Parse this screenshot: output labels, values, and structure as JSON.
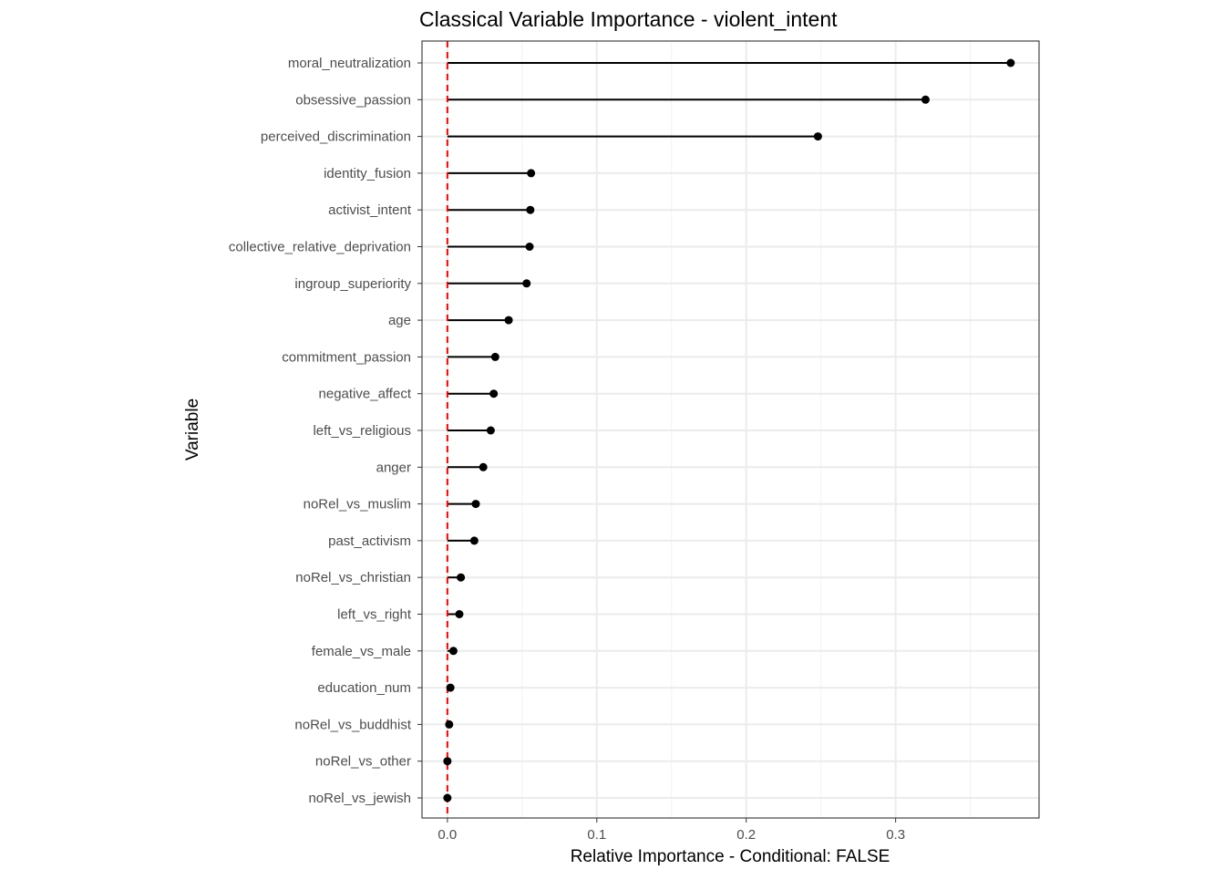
{
  "chart_data": {
    "type": "lollipop",
    "title": "Classical Variable Importance - violent_intent",
    "xlabel": "Relative Importance - Conditional: FALSE",
    "ylabel": "Variable",
    "xlim": [
      -0.017,
      0.396
    ],
    "xticks": [
      0.0,
      0.1,
      0.2,
      0.3
    ],
    "xtick_labels": [
      "0.0",
      "0.1",
      "0.2",
      "0.3"
    ],
    "reference_line": {
      "x": 0,
      "color": "#ff0000",
      "style": "dashed"
    },
    "grid": true,
    "categories": [
      "moral_neutralization",
      "obsessive_passion",
      "perceived_discrimination",
      "identity_fusion",
      "activist_intent",
      "collective_relative_deprivation",
      "ingroup_superiority",
      "age",
      "commitment_passion",
      "negative_affect",
      "left_vs_religious",
      "anger",
      "noRel_vs_muslim",
      "past_activism",
      "noRel_vs_christian",
      "left_vs_right",
      "female_vs_male",
      "education_num",
      "noRel_vs_buddhist",
      "noRel_vs_other",
      "noRel_vs_jewish"
    ],
    "values": [
      0.377,
      0.32,
      0.248,
      0.056,
      0.0555,
      0.055,
      0.053,
      0.041,
      0.032,
      0.031,
      0.029,
      0.024,
      0.019,
      0.018,
      0.009,
      0.008,
      0.004,
      0.002,
      0.0012,
      0.0,
      0.0
    ]
  }
}
